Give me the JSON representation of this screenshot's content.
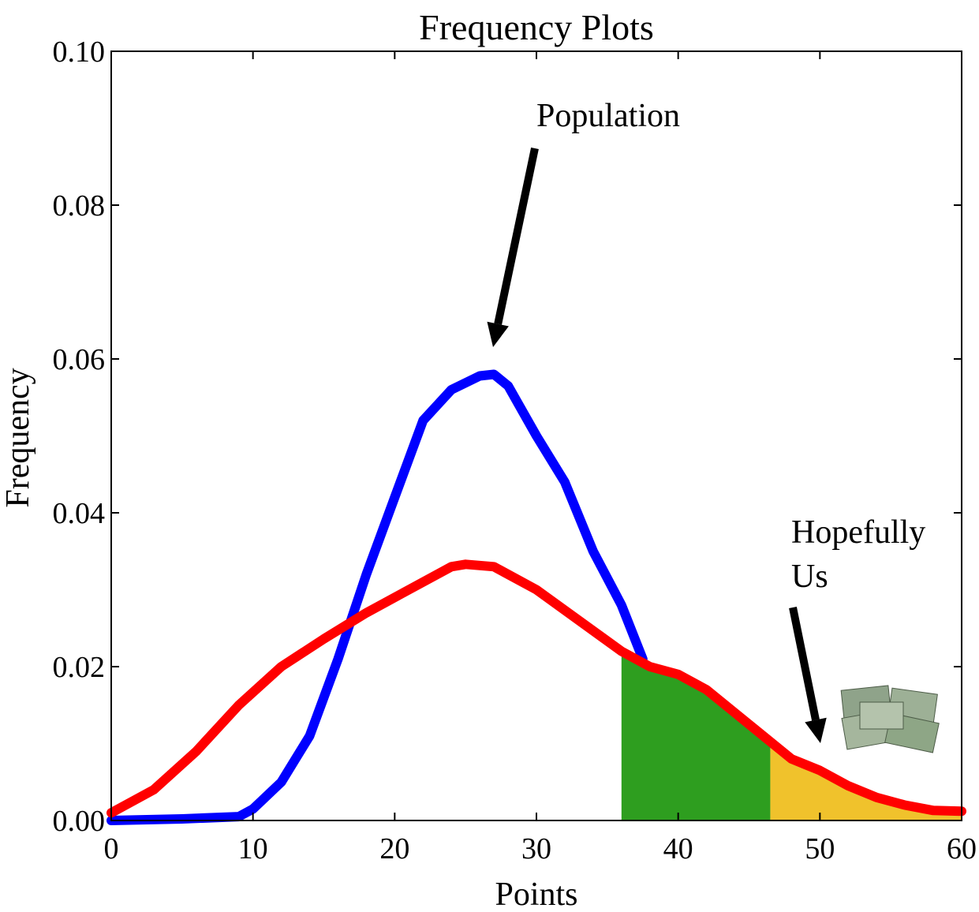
{
  "chart_data": {
    "type": "line",
    "title": "Frequency Plots",
    "x_label": "Points",
    "y_label": "Frequency",
    "xlim": [
      0,
      60
    ],
    "ylim": [
      0,
      0.1
    ],
    "xticks": [
      0,
      10,
      20,
      30,
      40,
      50,
      60
    ],
    "yticks": [
      {
        "value": 0,
        "label": "0.00"
      },
      {
        "value": 0.02,
        "label": "0.02"
      },
      {
        "value": 0.04,
        "label": "0.04"
      },
      {
        "value": 0.06,
        "label": "0.06"
      },
      {
        "value": 0.08,
        "label": "0.08"
      },
      {
        "value": 0.1,
        "label": "0.10"
      }
    ],
    "series": [
      {
        "color": "#0000ff",
        "x": [
          0,
          5,
          9,
          10,
          12,
          14,
          16,
          18,
          20,
          22,
          24,
          26,
          27,
          28,
          30,
          32,
          34,
          36,
          37.5
        ],
        "values": [
          0,
          0.0002,
          0.0005,
          0.0015,
          0.005,
          0.011,
          0.021,
          0.032,
          0.042,
          0.052,
          0.056,
          0.0578,
          0.058,
          0.0565,
          0.05,
          0.044,
          0.035,
          0.028,
          0.021
        ]
      },
      {
        "color": "#ff0000",
        "x": [
          0,
          3,
          6,
          9,
          12,
          15,
          18,
          21,
          24,
          25,
          27,
          30,
          33,
          36,
          38,
          40,
          42,
          44,
          46,
          48,
          50,
          52,
          54,
          56,
          58,
          60
        ],
        "values": [
          0.001,
          0.004,
          0.009,
          0.015,
          0.02,
          0.0236,
          0.027,
          0.03,
          0.033,
          0.0333,
          0.033,
          0.03,
          0.026,
          0.022,
          0.02,
          0.019,
          0.017,
          0.014,
          0.011,
          0.008,
          0.0065,
          0.0045,
          0.003,
          0.002,
          0.0013,
          0.0012
        ]
      }
    ],
    "fills": [
      {
        "color": "#2e9e1f",
        "from": 36,
        "to": 46.5
      },
      {
        "color": "#f0c22c",
        "from": 46.5,
        "to": 60
      }
    ],
    "annotations": [
      {
        "lines": [
          "Population"
        ]
      },
      {
        "lines": [
          "Hopefully",
          "Us"
        ]
      }
    ]
  }
}
